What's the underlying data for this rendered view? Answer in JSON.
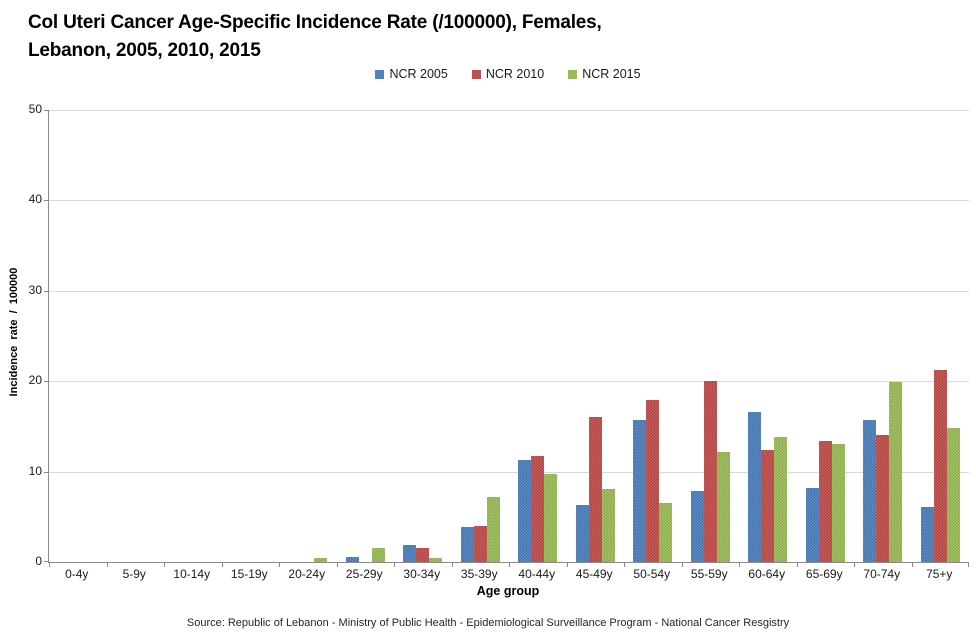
{
  "title": {
    "line1": "Col Uteri Cancer Age-Specific Incidence Rate (/100000), Females,",
    "line2": "Lebanon, 2005, 2010, 2015"
  },
  "source": "Source: Republic of Lebanon - Ministry of Public Health - Epidemiological Surveillance Program - National Cancer Resgistry",
  "colors": {
    "series_blue": "#4F81BD",
    "series_red": "#C0504D",
    "series_green": "#9BBB59",
    "gridline": "#d5dcd5",
    "axis": "#8a8a8a"
  },
  "chart_data": {
    "type": "bar",
    "title": "Col Uteri Cancer Age-Specific Incidence Rate (/100000), Females, Lebanon, 2005, 2010, 2015",
    "xlabel": "Age group",
    "ylabel": "Incidence rate / 100000",
    "ylim": [
      0,
      50
    ],
    "yticks": [
      0,
      10,
      20,
      30,
      40,
      50
    ],
    "grid": true,
    "legend_position": "top",
    "categories": [
      "0-4y",
      "5-9y",
      "10-14y",
      "15-19y",
      "20-24y",
      "25-29y",
      "30-34y",
      "35-39y",
      "40-44y",
      "45-49y",
      "50-54y",
      "55-59y",
      "60-64y",
      "65-69y",
      "70-74y",
      "75+y"
    ],
    "series": [
      {
        "name": "NCR 2005",
        "color": "#4F81BD",
        "values": [
          0,
          0,
          0,
          0,
          0,
          0.6,
          1.9,
          3.9,
          11.3,
          6.3,
          15.7,
          7.9,
          16.6,
          8.2,
          15.7,
          6.1
        ]
      },
      {
        "name": "NCR 2010",
        "color": "#C0504D",
        "values": [
          0,
          0,
          0,
          0,
          0,
          0,
          1.6,
          4.0,
          11.7,
          16.0,
          17.9,
          20.0,
          12.4,
          13.4,
          14.0,
          21.2
        ]
      },
      {
        "name": "NCR 2015",
        "color": "#9BBB59",
        "values": [
          0,
          0,
          0,
          0,
          0.4,
          1.5,
          0.4,
          7.2,
          9.7,
          8.1,
          6.5,
          12.2,
          13.8,
          13.0,
          19.9,
          14.8
        ]
      }
    ]
  }
}
